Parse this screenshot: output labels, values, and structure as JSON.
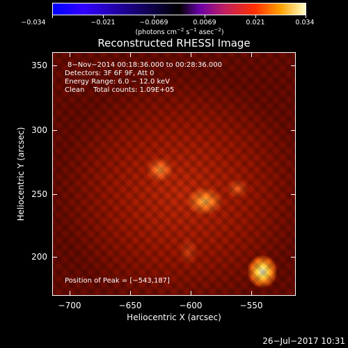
{
  "colorbar": {
    "tick_labels": [
      "−0.034",
      "−0.021",
      "−0.0069",
      "0.0069",
      "0.021",
      "0.034"
    ],
    "units": {
      "pre": "(photons cm",
      "e1": "−2",
      "mid1": " s",
      "e2": "−1",
      "mid2": " asec",
      "e3": "−2",
      "post": ")"
    }
  },
  "title": "Reconstructed RHESSI Image",
  "info": {
    "time_range": "8−Nov−2014 00:18:36.000 to 00:28:36.000",
    "detectors": "Detectors: 3F 6F 9F, Att 0",
    "energy": "Energy Range: 6.0 − 12.0 keV",
    "clean": "Clean    Total counts: 1.09E+05",
    "peak": "Position of Peak = [−543,187]"
  },
  "axes": {
    "x_ticks": [
      "−700",
      "−650",
      "−600",
      "−550"
    ],
    "y_ticks": [
      "350",
      "300",
      "250",
      "200"
    ],
    "xlabel": "Heliocentric X (arcsec)",
    "ylabel": "Heliocentric Y (arcsec)"
  },
  "datestamp": "26−Jul−2017 10:31",
  "colors": {
    "background": "#000000",
    "peak": "#ffffdc",
    "map_base": "#9a1600"
  }
}
